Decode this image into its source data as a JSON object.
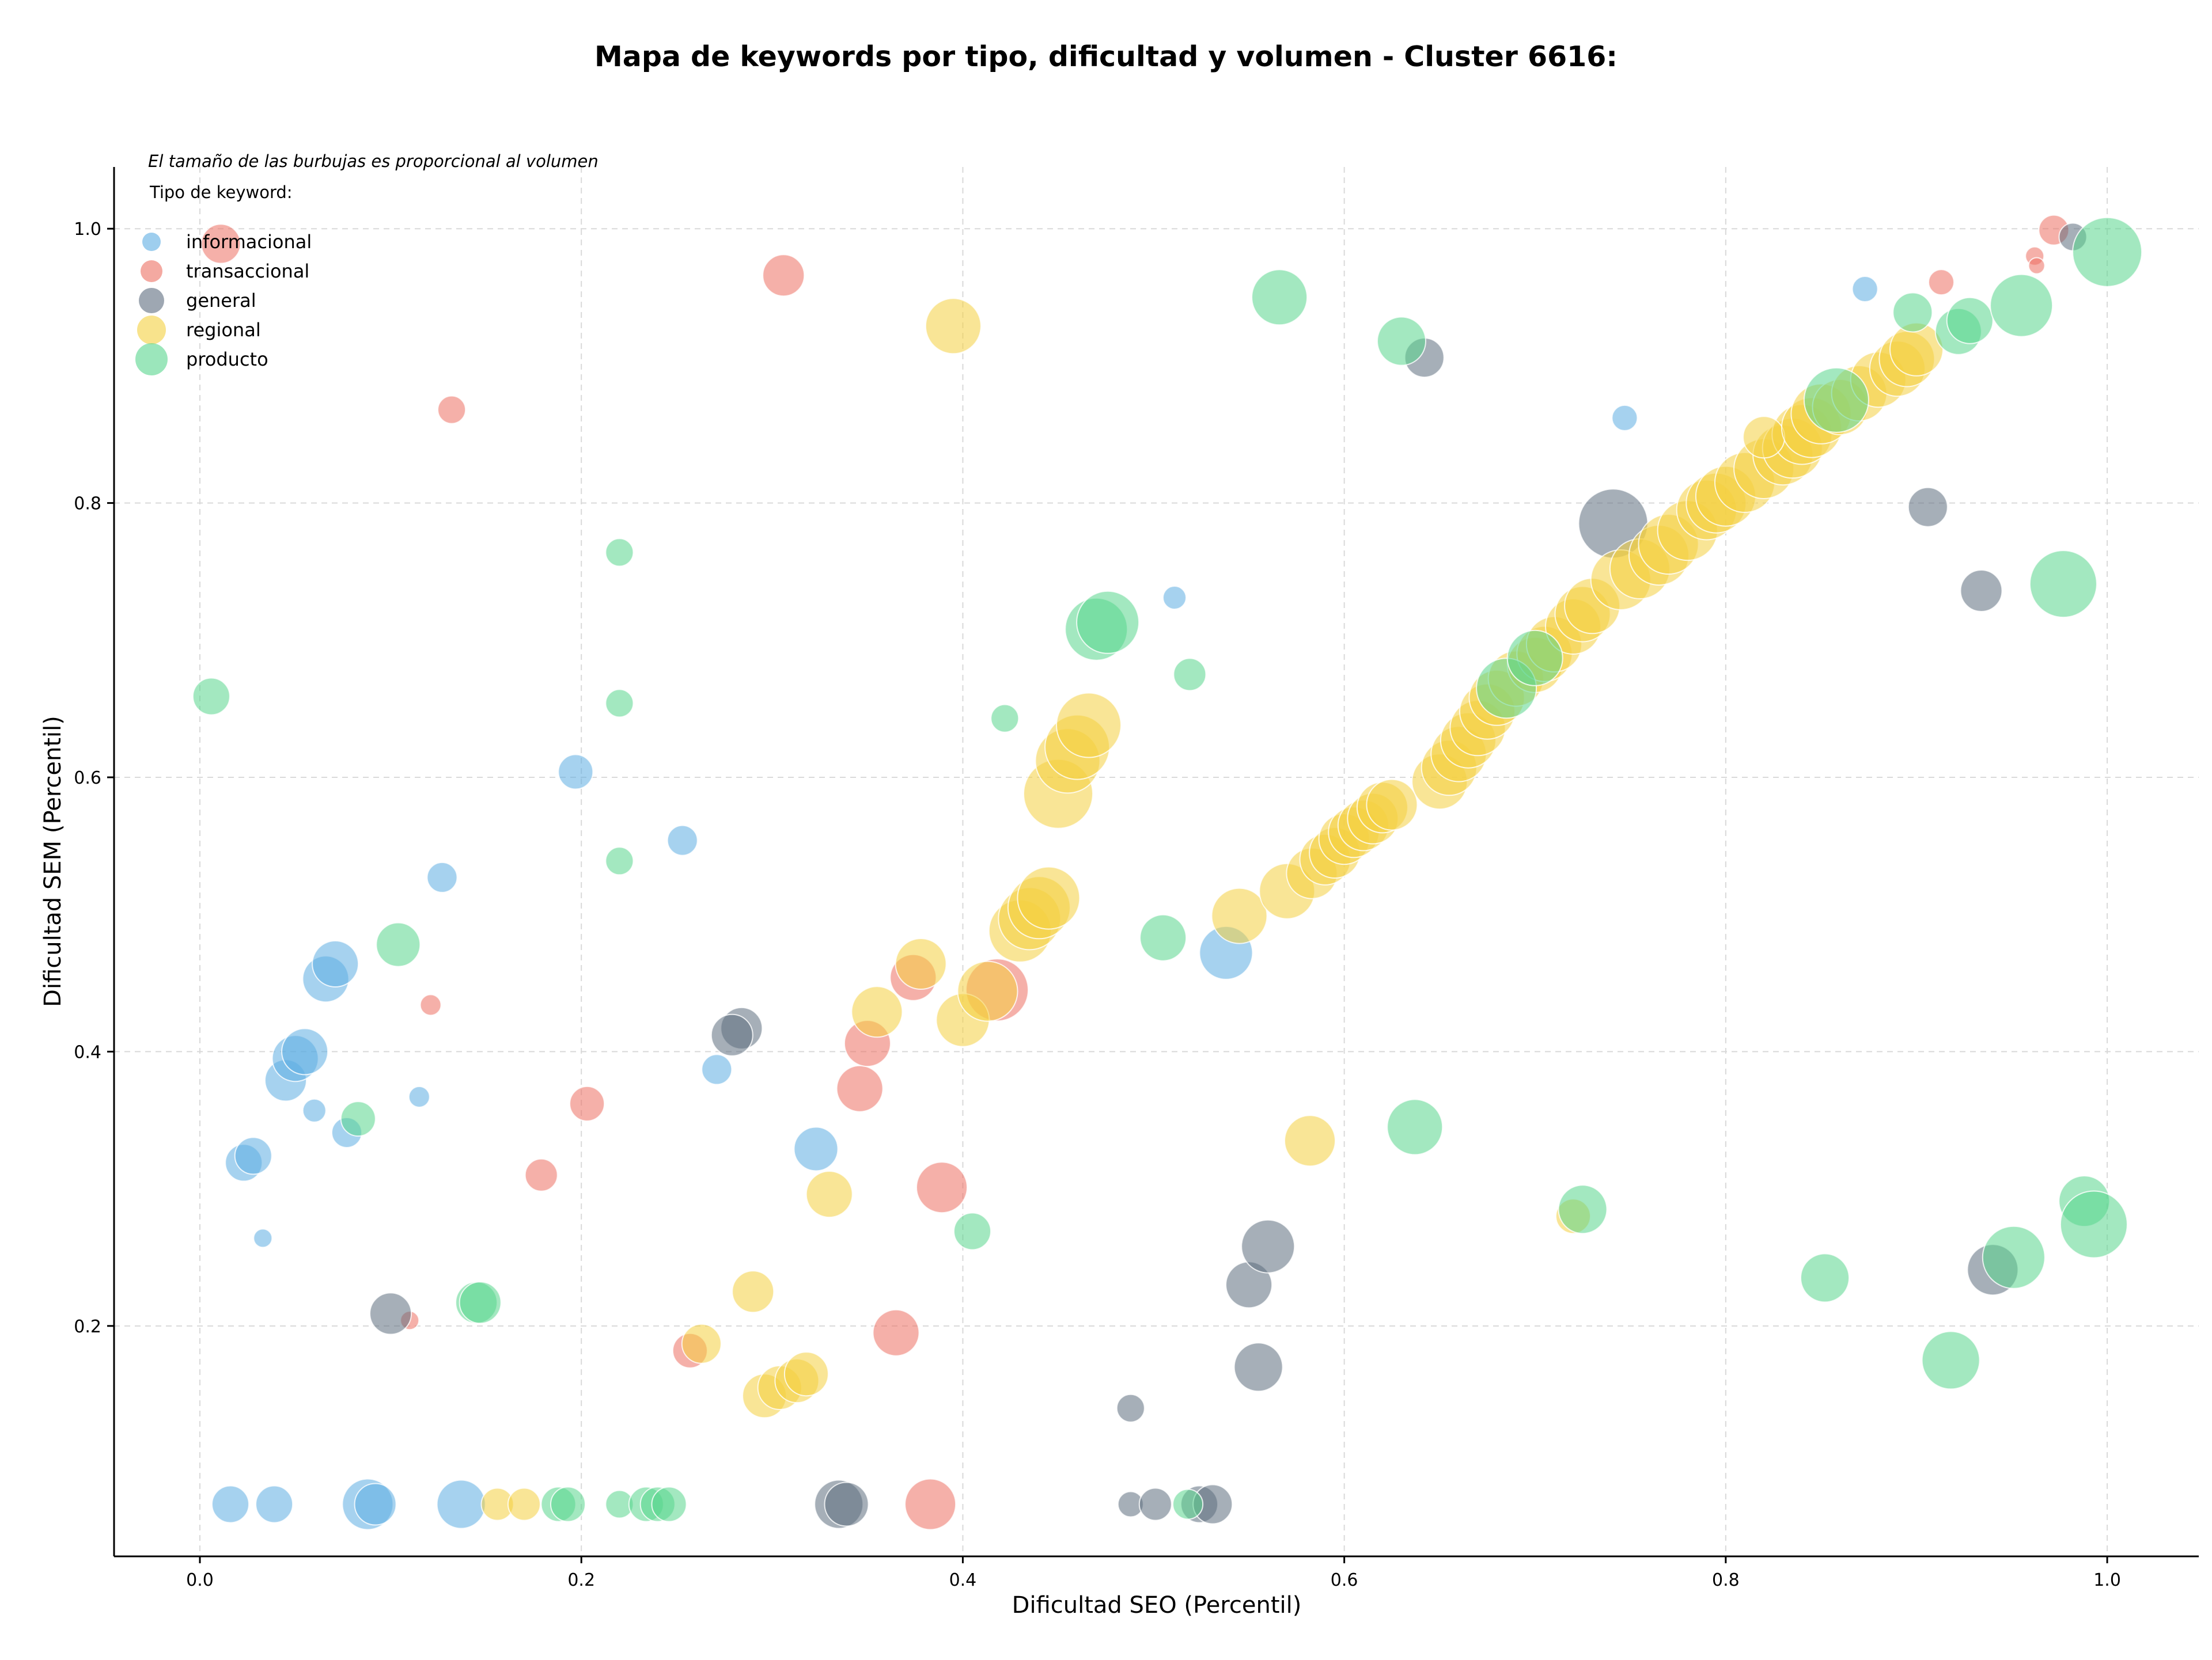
{
  "chart_data": {
    "type": "scatter",
    "title": "Mapa de keywords por tipo, dificultad y volumen - Cluster 6616:",
    "xlabel": "Dificultad SEO (Percentil)",
    "ylabel": "Dificultad SEM (Percentil)",
    "xlim": [
      -0.045,
      1.048
    ],
    "ylim": [
      0.032,
      1.045
    ],
    "xticks": [
      "0.0",
      "0.2",
      "0.4",
      "0.6",
      "0.8",
      "1.0"
    ],
    "yticks": [
      "0.2",
      "0.4",
      "0.6",
      "0.8",
      "1.0"
    ],
    "grid": true,
    "note": "El tamaño de las burbujas es proporcional al volumen",
    "legend_title": "Tipo de keyword:",
    "legend_position": "top-left",
    "series": [
      {
        "name": "informacional",
        "color": "#5DADE2",
        "points": [
          [
            0.016,
            0.07,
            32
          ],
          [
            0.039,
            0.07,
            32
          ],
          [
            0.088,
            0.07,
            44
          ],
          [
            0.092,
            0.07,
            36
          ],
          [
            0.137,
            0.07,
            42
          ],
          [
            0.033,
            0.264,
            16
          ],
          [
            0.023,
            0.319,
            32
          ],
          [
            0.028,
            0.324,
            32
          ],
          [
            0.045,
            0.379,
            36
          ],
          [
            0.05,
            0.395,
            40
          ],
          [
            0.055,
            0.4,
            40
          ],
          [
            0.06,
            0.357,
            20
          ],
          [
            0.077,
            0.341,
            26
          ],
          [
            0.066,
            0.453,
            40
          ],
          [
            0.071,
            0.464,
            40
          ],
          [
            0.115,
            0.367,
            18
          ],
          [
            0.127,
            0.527,
            26
          ],
          [
            0.197,
            0.604,
            30
          ],
          [
            0.253,
            0.554,
            26
          ],
          [
            0.271,
            0.387,
            26
          ],
          [
            0.323,
            0.329,
            38
          ],
          [
            0.511,
            0.731,
            20
          ],
          [
            0.538,
            0.472,
            46
          ],
          [
            0.747,
            0.862,
            22
          ],
          [
            0.873,
            0.956,
            22
          ]
        ]
      },
      {
        "name": "transaccional",
        "color": "#EC7063",
        "points": [
          [
            0.011,
            0.989,
            34
          ],
          [
            0.11,
            0.204,
            16
          ],
          [
            0.121,
            0.434,
            18
          ],
          [
            0.132,
            0.868,
            24
          ],
          [
            0.179,
            0.31,
            28
          ],
          [
            0.203,
            0.362,
            30
          ],
          [
            0.257,
            0.182,
            30
          ],
          [
            0.306,
            0.966,
            36
          ],
          [
            0.346,
            0.373,
            40
          ],
          [
            0.35,
            0.406,
            40
          ],
          [
            0.365,
            0.195,
            40
          ],
          [
            0.374,
            0.454,
            40
          ],
          [
            0.383,
            0.07,
            44
          ],
          [
            0.389,
            0.301,
            44
          ],
          [
            0.418,
            0.445,
            54
          ],
          [
            0.913,
            0.961,
            22
          ],
          [
            0.962,
            0.98,
            16
          ],
          [
            0.963,
            0.973,
            14
          ],
          [
            0.972,
            0.999,
            26
          ]
        ]
      },
      {
        "name": "general",
        "color": "#5D6D7E",
        "points": [
          [
            0.1,
            0.209,
            36
          ],
          [
            0.284,
            0.417,
            36
          ],
          [
            0.279,
            0.412,
            36
          ],
          [
            0.335,
            0.07,
            42
          ],
          [
            0.339,
            0.07,
            38
          ],
          [
            0.488,
            0.14,
            24
          ],
          [
            0.488,
            0.07,
            22
          ],
          [
            0.501,
            0.07,
            28
          ],
          [
            0.524,
            0.07,
            32
          ],
          [
            0.531,
            0.07,
            34
          ],
          [
            0.55,
            0.23,
            40
          ],
          [
            0.555,
            0.17,
            42
          ],
          [
            0.56,
            0.258,
            46
          ],
          [
            0.642,
            0.906,
            34
          ],
          [
            0.741,
            0.785,
            60
          ],
          [
            0.906,
            0.797,
            34
          ],
          [
            0.934,
            0.736,
            36
          ],
          [
            0.94,
            0.241,
            44
          ],
          [
            0.982,
            0.994,
            24
          ]
        ]
      },
      {
        "name": "regional",
        "color": "#F4D03F",
        "points": [
          [
            0.156,
            0.07,
            28
          ],
          [
            0.17,
            0.07,
            28
          ],
          [
            0.263,
            0.187,
            34
          ],
          [
            0.29,
            0.225,
            36
          ],
          [
            0.296,
            0.149,
            38
          ],
          [
            0.304,
            0.155,
            38
          ],
          [
            0.313,
            0.16,
            38
          ],
          [
            0.318,
            0.165,
            38
          ],
          [
            0.33,
            0.296,
            40
          ],
          [
            0.355,
            0.429,
            44
          ],
          [
            0.378,
            0.464,
            44
          ],
          [
            0.4,
            0.423,
            46
          ],
          [
            0.413,
            0.444,
            52
          ],
          [
            0.395,
            0.929,
            48
          ],
          [
            0.43,
            0.488,
            54
          ],
          [
            0.435,
            0.497,
            54
          ],
          [
            0.44,
            0.505,
            54
          ],
          [
            0.445,
            0.512,
            54
          ],
          [
            0.45,
            0.588,
            60
          ],
          [
            0.455,
            0.612,
            56
          ],
          [
            0.46,
            0.622,
            56
          ],
          [
            0.466,
            0.638,
            56
          ],
          [
            0.545,
            0.499,
            48
          ],
          [
            0.57,
            0.517,
            48
          ],
          [
            0.582,
            0.335,
            44
          ],
          [
            0.583,
            0.53,
            44
          ],
          [
            0.59,
            0.54,
            44
          ],
          [
            0.595,
            0.545,
            44
          ],
          [
            0.6,
            0.555,
            44
          ],
          [
            0.605,
            0.56,
            44
          ],
          [
            0.61,
            0.565,
            44
          ],
          [
            0.615,
            0.57,
            44
          ],
          [
            0.62,
            0.578,
            44
          ],
          [
            0.625,
            0.58,
            44
          ],
          [
            0.65,
            0.597,
            48
          ],
          [
            0.655,
            0.607,
            48
          ],
          [
            0.66,
            0.617,
            48
          ],
          [
            0.665,
            0.627,
            48
          ],
          [
            0.67,
            0.636,
            48
          ],
          [
            0.675,
            0.648,
            48
          ],
          [
            0.68,
            0.658,
            48
          ],
          [
            0.69,
            0.672,
            48
          ],
          [
            0.7,
            0.682,
            48
          ],
          [
            0.705,
            0.69,
            48
          ],
          [
            0.71,
            0.697,
            48
          ],
          [
            0.72,
            0.71,
            48
          ],
          [
            0.725,
            0.719,
            48
          ],
          [
            0.73,
            0.725,
            48
          ],
          [
            0.745,
            0.744,
            52
          ],
          [
            0.755,
            0.752,
            52
          ],
          [
            0.765,
            0.762,
            52
          ],
          [
            0.77,
            0.77,
            52
          ],
          [
            0.78,
            0.78,
            52
          ],
          [
            0.79,
            0.795,
            52
          ],
          [
            0.795,
            0.8,
            52
          ],
          [
            0.8,
            0.805,
            52
          ],
          [
            0.81,
            0.815,
            52
          ],
          [
            0.82,
            0.825,
            52
          ],
          [
            0.83,
            0.835,
            52
          ],
          [
            0.835,
            0.84,
            52
          ],
          [
            0.84,
            0.85,
            52
          ],
          [
            0.82,
            0.848,
            36
          ],
          [
            0.845,
            0.855,
            52
          ],
          [
            0.85,
            0.865,
            52
          ],
          [
            0.86,
            0.87,
            48
          ],
          [
            0.87,
            0.88,
            48
          ],
          [
            0.88,
            0.89,
            48
          ],
          [
            0.89,
            0.898,
            48
          ],
          [
            0.895,
            0.905,
            48
          ],
          [
            0.9,
            0.912,
            46
          ],
          [
            0.72,
            0.28,
            30
          ]
        ]
      },
      {
        "name": "producto",
        "color": "#58D68D",
        "points": [
          [
            0.006,
            0.659,
            32
          ],
          [
            0.083,
            0.351,
            30
          ],
          [
            0.104,
            0.478,
            38
          ],
          [
            0.145,
            0.217,
            36
          ],
          [
            0.147,
            0.217,
            36
          ],
          [
            0.188,
            0.07,
            30
          ],
          [
            0.193,
            0.07,
            30
          ],
          [
            0.22,
            0.764,
            24
          ],
          [
            0.22,
            0.654,
            24
          ],
          [
            0.22,
            0.539,
            24
          ],
          [
            0.22,
            0.07,
            24
          ],
          [
            0.234,
            0.07,
            30
          ],
          [
            0.24,
            0.07,
            30
          ],
          [
            0.246,
            0.07,
            30
          ],
          [
            0.405,
            0.269,
            32
          ],
          [
            0.422,
            0.643,
            24
          ],
          [
            0.47,
            0.708,
            54
          ],
          [
            0.476,
            0.713,
            54
          ],
          [
            0.505,
            0.483,
            40
          ],
          [
            0.519,
            0.675,
            28
          ],
          [
            0.518,
            0.07,
            26
          ],
          [
            0.566,
            0.95,
            48
          ],
          [
            0.63,
            0.918,
            42
          ],
          [
            0.637,
            0.345,
            48
          ],
          [
            0.685,
            0.665,
            52
          ],
          [
            0.7,
            0.687,
            48
          ],
          [
            0.725,
            0.285,
            42
          ],
          [
            0.852,
            0.235,
            42
          ],
          [
            0.858,
            0.875,
            56
          ],
          [
            0.898,
            0.939,
            34
          ],
          [
            0.922,
            0.925,
            40
          ],
          [
            0.918,
            0.175,
            50
          ],
          [
            0.928,
            0.933,
            40
          ],
          [
            0.951,
            0.25,
            54
          ],
          [
            0.955,
            0.944,
            54
          ],
          [
            0.977,
            0.741,
            58
          ],
          [
            0.988,
            0.291,
            44
          ],
          [
            0.993,
            0.274,
            58
          ],
          [
            1.0,
            0.983,
            60
          ]
        ]
      }
    ]
  }
}
